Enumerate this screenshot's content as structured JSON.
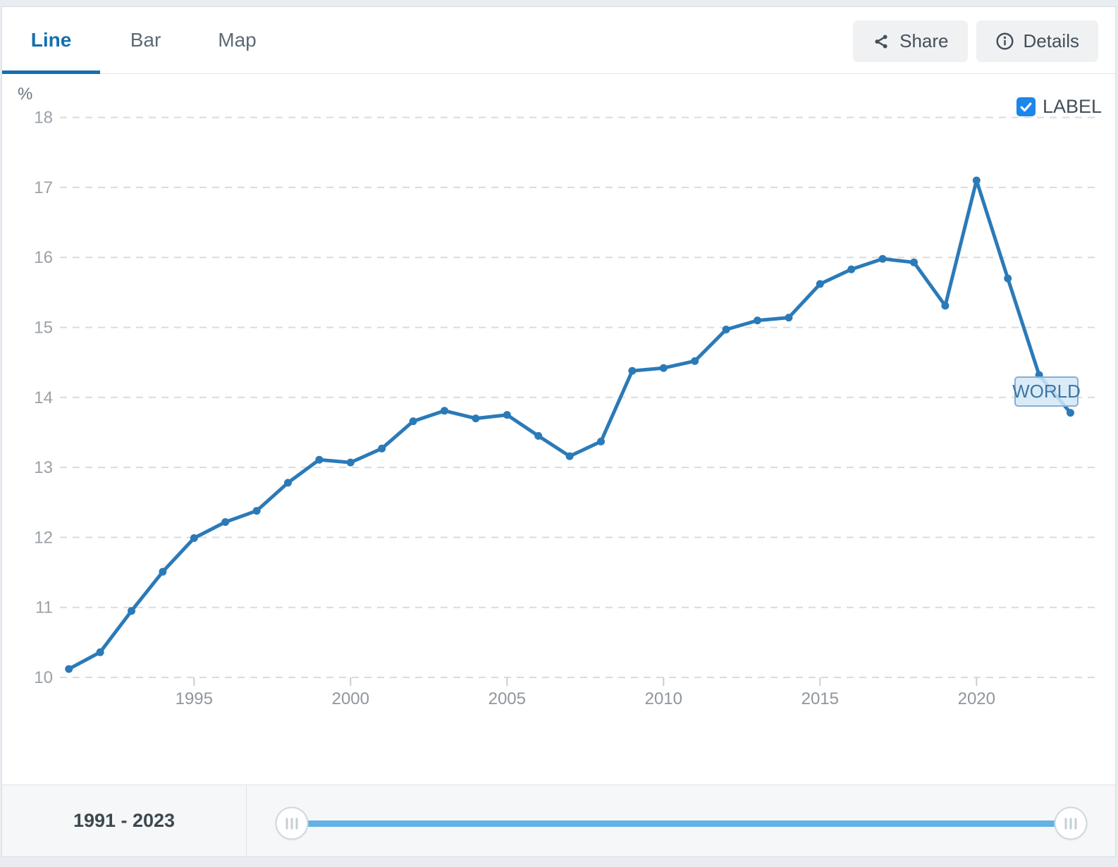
{
  "tabs": [
    {
      "label": "Line",
      "active": true
    },
    {
      "label": "Bar",
      "active": false
    },
    {
      "label": "Map",
      "active": false
    }
  ],
  "toolbar": {
    "share_label": "Share",
    "details_label": "Details"
  },
  "legend": {
    "label_text": "LABEL",
    "checked": true
  },
  "range": {
    "text": "1991 - 2023",
    "start": 1991,
    "end": 2023
  },
  "colors": {
    "line": "#2b7ab8",
    "tab_active": "#166fad",
    "checkbox": "#1c86e9",
    "slider_track": "#63b2e5"
  },
  "chart_data": {
    "type": "line",
    "title": "",
    "xlabel": "",
    "ylabel": "%",
    "xlim": [
      1991,
      2023
    ],
    "ylim": [
      10,
      18
    ],
    "grid": "dashed-horizontal",
    "legend_position": "top-right",
    "x_ticks": [
      1995,
      2000,
      2005,
      2010,
      2015,
      2020
    ],
    "y_ticks": [
      10,
      11,
      12,
      13,
      14,
      15,
      16,
      17,
      18
    ],
    "x": [
      1991,
      1992,
      1993,
      1994,
      1995,
      1996,
      1997,
      1998,
      1999,
      2000,
      2001,
      2002,
      2003,
      2004,
      2005,
      2006,
      2007,
      2008,
      2009,
      2010,
      2011,
      2012,
      2013,
      2014,
      2015,
      2016,
      2017,
      2018,
      2019,
      2020,
      2021,
      2022,
      2023
    ],
    "series": [
      {
        "name": "WORLD",
        "values": [
          10.12,
          10.36,
          10.95,
          11.51,
          11.99,
          12.22,
          12.38,
          12.78,
          13.11,
          13.07,
          13.27,
          13.66,
          13.81,
          13.7,
          13.75,
          13.45,
          13.16,
          13.37,
          14.38,
          14.42,
          14.52,
          14.97,
          15.1,
          15.14,
          15.62,
          15.83,
          15.98,
          15.93,
          15.31,
          17.1,
          15.7,
          14.32,
          13.78
        ]
      }
    ]
  }
}
